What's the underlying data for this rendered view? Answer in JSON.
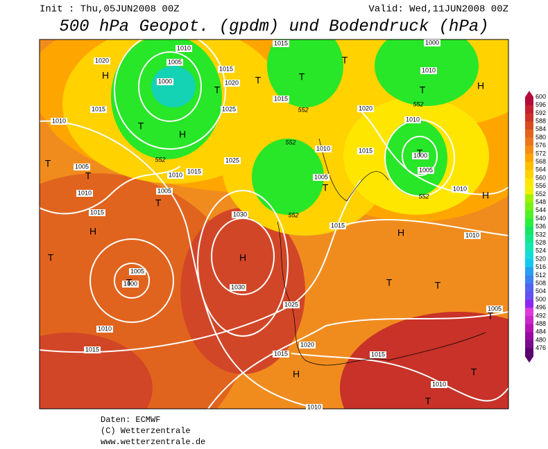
{
  "header": {
    "init": "Init : Thu,05JUN2008 00Z",
    "valid": "Valid: Wed,11JUN2008 00Z",
    "title": "500 hPa Geopot. (gpdm) und Bodendruck (hPa)"
  },
  "colorbar": {
    "levels": [
      "600",
      "596",
      "592",
      "588",
      "584",
      "580",
      "576",
      "572",
      "568",
      "564",
      "560",
      "556",
      "552",
      "548",
      "544",
      "540",
      "536",
      "532",
      "528",
      "524",
      "520",
      "516",
      "512",
      "508",
      "504",
      "500",
      "496",
      "492",
      "488",
      "484",
      "480",
      "476"
    ],
    "colors": [
      "#b40a3c",
      "#c31e32",
      "#cd3228",
      "#d74b1e",
      "#e1641e",
      "#eb781e",
      "#f58c14",
      "#ffa500",
      "#ffbe00",
      "#ffd200",
      "#ffe600",
      "#f0f000",
      "#a0f000",
      "#78f014",
      "#50f028",
      "#28f03c",
      "#14e664",
      "#14e68c",
      "#14e6b4",
      "#14dcdc",
      "#14c8f0",
      "#28a0f0",
      "#3c82f0",
      "#5064f0",
      "#6450f0",
      "#8c28f0",
      "#dc3cdc",
      "#c828c8",
      "#b414b4",
      "#960aa0",
      "#780a8c",
      "#5a006e"
    ]
  },
  "map": {
    "isobar_labels": [
      "1010",
      "1005",
      "1000",
      "1020",
      "1015",
      "1010",
      "1015",
      "1020",
      "1025",
      "1015",
      "1015",
      "1000",
      "1010",
      "1020",
      "1010",
      "1000",
      "1005",
      "1010",
      "1010",
      "1005",
      "1015",
      "1025",
      "1015",
      "1010",
      "1005",
      "1005",
      "1010",
      "1015",
      "1030",
      "1005",
      "1000",
      "1030",
      "1025",
      "1020",
      "1015",
      "1015",
      "1010",
      "1015",
      "1010",
      "1010",
      "1015",
      "1010",
      "1005"
    ],
    "height_labels": [
      "552",
      "552",
      "552",
      "552",
      "552",
      "552"
    ],
    "pressure_centers": [
      "H",
      "T",
      "H",
      "T",
      "T",
      "T",
      "T",
      "T",
      "H",
      "T",
      "T",
      "T",
      "T",
      "T",
      "H",
      "T",
      "T",
      "H",
      "H",
      "H",
      "T",
      "T",
      "T",
      "H",
      "T",
      "T"
    ]
  },
  "footer": {
    "lines": [
      "Daten: ECMWF",
      "(C) Wetterzentrale",
      "www.wetterzentrale.de"
    ]
  }
}
